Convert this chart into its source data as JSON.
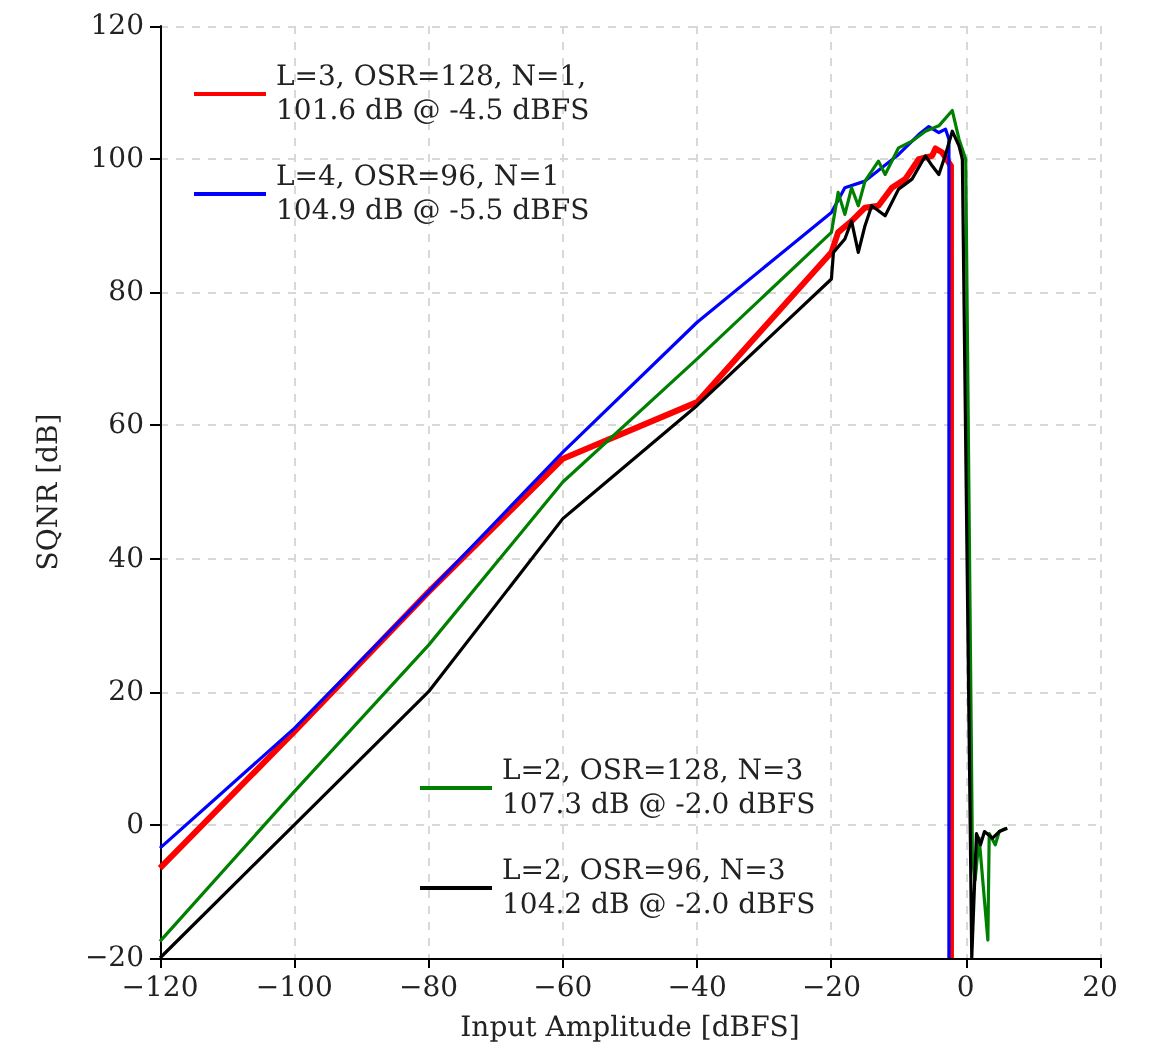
{
  "chart_data": {
    "type": "line",
    "xlabel": "Input Amplitude [dBFS]",
    "ylabel": "SQNR [dB]",
    "xlim": [
      -120,
      20
    ],
    "xticks": [
      -120,
      -100,
      -80,
      -60,
      -40,
      -20,
      0,
      20
    ],
    "ylim": [
      -20,
      120
    ],
    "yticks": [
      -20,
      0,
      20,
      40,
      60,
      80,
      100,
      120
    ],
    "grid": true,
    "legend": "top left",
    "marker": "none",
    "line_style": "solid",
    "series": [
      {
        "name": "L=3, OSR=128, N=1,\n101.6 dB @ -4.5 dBFS",
        "color": "#ff0000",
        "x": [
          -120,
          -100,
          -80,
          -60,
          -40,
          -20,
          -19,
          -17,
          -15,
          -13,
          -11,
          -9,
          -7,
          -5,
          -4.5,
          -3.5,
          -2.2,
          -2.2
        ],
        "values": [
          -6.5,
          14,
          35,
          55,
          63.5,
          86,
          89,
          90.7,
          92.7,
          93,
          95.7,
          97,
          100,
          100.5,
          101.6,
          101,
          99,
          -20
        ]
      },
      {
        "name": "L=4, OSR=96, N=1\n104.9 dB @ -5.5 dBFS",
        "color": "#0000ff",
        "x": [
          -120,
          -100,
          -80,
          -60,
          -40,
          -20,
          -18,
          -15,
          -10,
          -7,
          -5.5,
          -4,
          -3,
          -2.5,
          -2.5
        ],
        "values": [
          -3.5,
          14.5,
          35,
          56,
          75.5,
          92,
          95.7,
          96.7,
          100.7,
          103.7,
          104.9,
          104,
          104.5,
          103,
          -20
        ]
      },
      {
        "name": "L=2, OSR=128, N=3\n107.3 dB @ -2.0 dBFS",
        "color": "#008000",
        "x": [
          -120,
          -100,
          -80,
          -60,
          -40,
          -20,
          -19,
          -18,
          -17,
          -16,
          -15,
          -13,
          -12,
          -10,
          -8,
          -6,
          -4,
          -2,
          -1,
          0,
          1,
          1.4,
          2,
          3.3,
          3.5,
          4.4,
          5,
          6
        ],
        "values": [
          -17.5,
          5,
          27,
          51.5,
          70,
          89,
          95,
          91.7,
          95.7,
          93,
          96.7,
          99.7,
          97.7,
          101.7,
          102.7,
          104.2,
          105,
          107.3,
          103,
          100,
          -5,
          -8.3,
          -2,
          -17.3,
          -1.3,
          -3,
          -1,
          -0.5
        ]
      },
      {
        "name": "L=2, OSR=96, N=3\n104.2 dB @ -2.0 dBFS",
        "color": "#000000",
        "x": [
          -120,
          -100,
          -80,
          -60,
          -40,
          -20,
          -19.7,
          -18,
          -17,
          -16,
          -15,
          -14,
          -12,
          -10,
          -8,
          -6,
          -5,
          -4,
          -3,
          -2,
          -1,
          -0.5,
          0.9,
          1.6,
          2.2,
          2.8,
          4,
          5,
          6.2
        ],
        "values": [
          -20,
          0,
          20,
          46,
          63,
          82,
          86,
          88,
          90.7,
          86,
          90,
          93,
          91.5,
          95.5,
          97,
          100.5,
          99,
          97.7,
          100.7,
          104.2,
          102,
          100,
          -20,
          -1.3,
          -3,
          -1,
          -2,
          -1,
          -0.5
        ]
      }
    ]
  }
}
